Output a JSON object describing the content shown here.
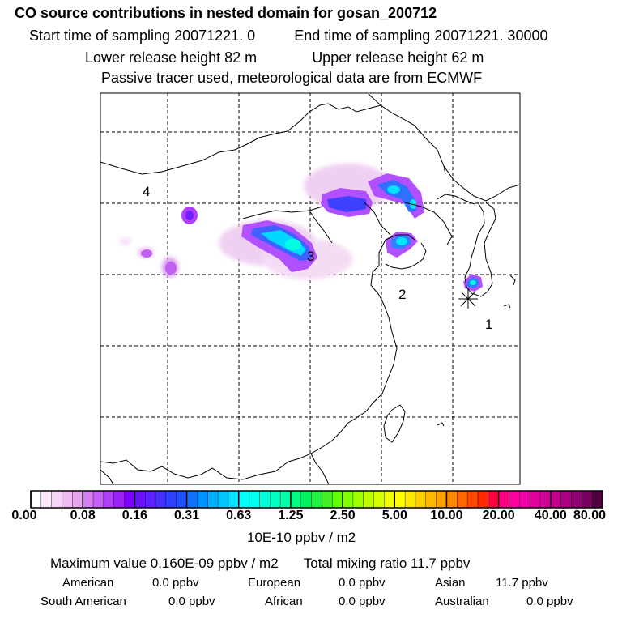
{
  "header": {
    "title": "CO  source contributions in nested domain for gosan_200712",
    "start_label": "Start time of sampling",
    "start_value": "20071221.     0",
    "end_label": "End time of sampling",
    "end_value": "20071221. 30000",
    "lower_label": "Lower release height",
    "lower_value": "82 m",
    "upper_label": "Upper release height",
    "upper_value": "62 m",
    "note": "Passive tracer used, meteorological data are from ECMWF"
  },
  "map": {
    "region_labels": [
      "4",
      "3",
      "2",
      "1"
    ],
    "receptor_marker": "star-icon"
  },
  "colorbar": {
    "tick_labels": [
      "0.00",
      "0.08",
      "0.16",
      "0.31",
      "0.63",
      "1.25",
      "2.50",
      "5.00",
      "10.00",
      "20.00",
      "40.00",
      "80.00"
    ],
    "unit": "10E-10 ppbv / m2"
  },
  "summary": {
    "max_line": "Maximum value  0.160E-09 ppbv / m2",
    "total_line": "Total mixing ratio       11.7 ppbv",
    "regions_row1": [
      {
        "name": "American",
        "value": "0.0 ppbv"
      },
      {
        "name": "European",
        "value": "0.0 ppbv"
      },
      {
        "name": "Asian",
        "value": "11.7 ppbv"
      }
    ],
    "regions_row2": [
      {
        "name": "South American",
        "value": "0.0 ppbv"
      },
      {
        "name": "African",
        "value": "0.0 ppbv"
      },
      {
        "name": "Australian",
        "value": "0.0 ppbv"
      }
    ]
  },
  "colors": {
    "low": "#f5d8f5",
    "mid": "#8000ff",
    "high": "#00ffe0"
  }
}
